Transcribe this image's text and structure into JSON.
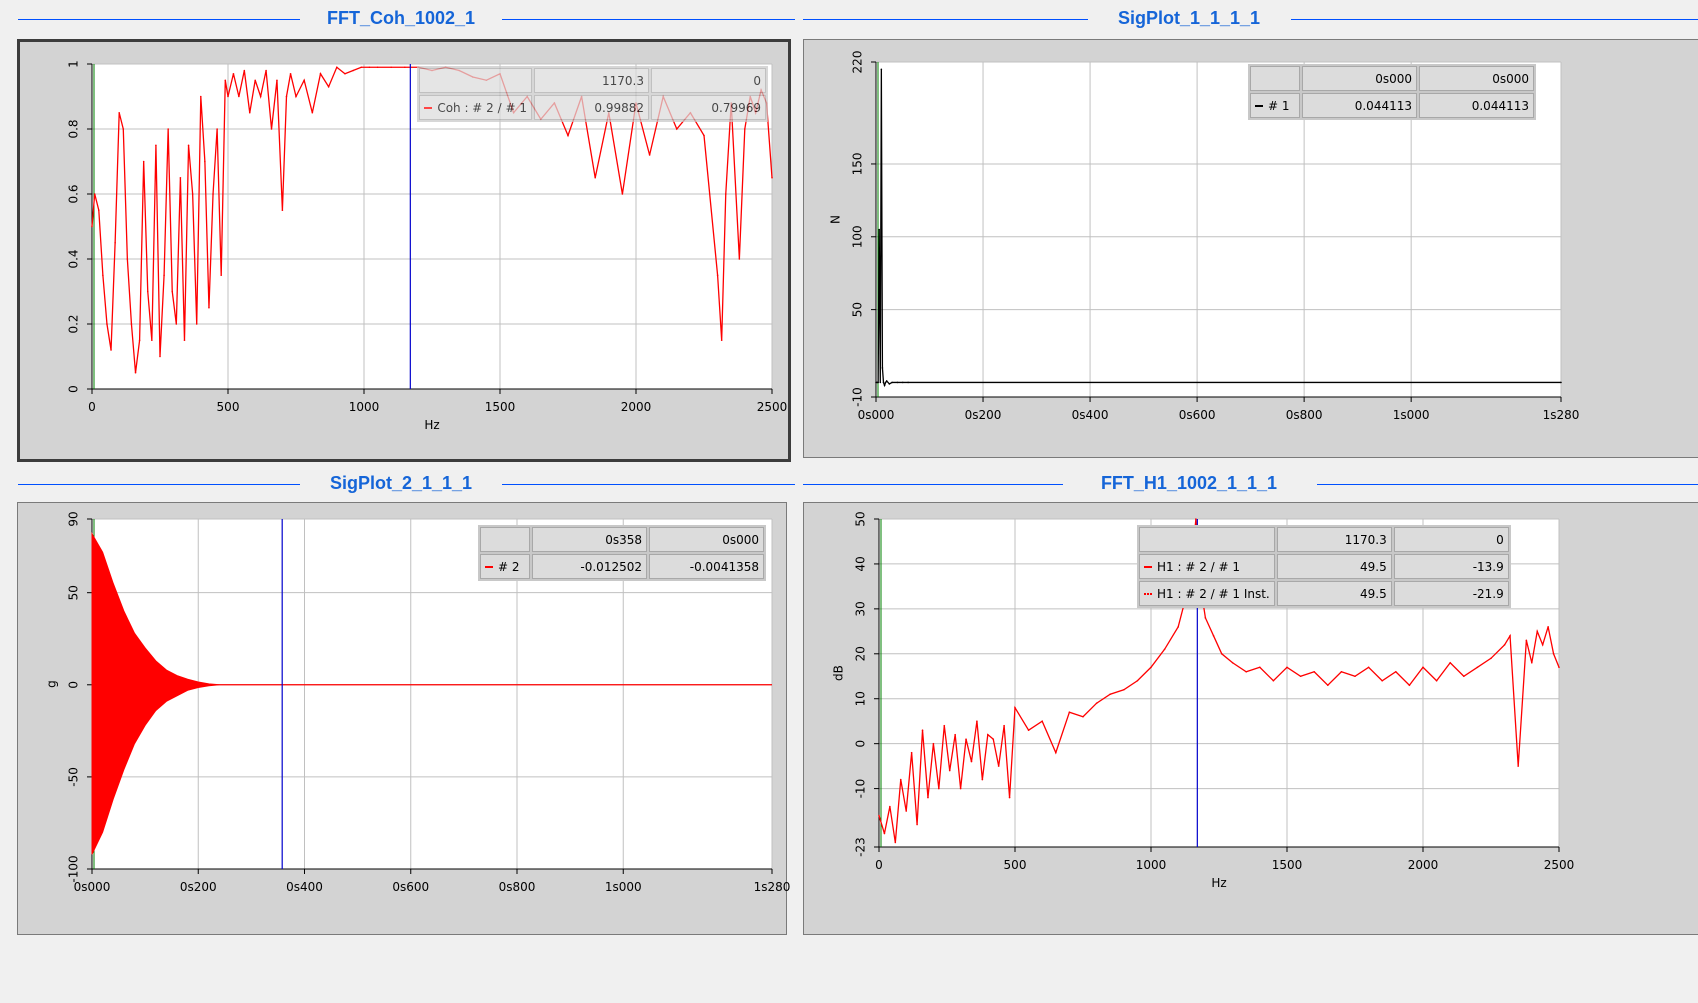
{
  "panels": [
    {
      "id": "p1",
      "title": "FFT_Coh_1002_1",
      "active": true,
      "chart_data": {
        "type": "line",
        "title": "FFT_Coh_1002_1",
        "xlabel": "Hz",
        "ylabel": "",
        "xlim": [
          0,
          2500
        ],
        "ylim": [
          0,
          1
        ],
        "xticks": [
          0,
          500,
          1000,
          1500,
          2000,
          2500
        ],
        "xtick_labels": [
          "0",
          "500",
          "1000",
          "1500",
          "2000",
          "2500"
        ],
        "yticks": [
          0,
          0.2,
          0.4,
          0.6,
          0.8,
          1
        ],
        "ytick_labels": [
          "0",
          "0.2",
          "0.4",
          "0.6",
          "0.8",
          "1"
        ],
        "grid": true,
        "cursor_x": 1170.3,
        "series": [
          {
            "color": "#ff0000",
            "x": [
              0,
              10,
              25,
              40,
              55,
              70,
              85,
              100,
              115,
              130,
              145,
              160,
              175,
              190,
              205,
              220,
              235,
              250,
              265,
              280,
              295,
              310,
              325,
              340,
              355,
              370,
              385,
              400,
              415,
              430,
              445,
              460,
              475,
              490,
              500,
              520,
              540,
              560,
              580,
              600,
              620,
              640,
              660,
              680,
              700,
              715,
              730,
              750,
              780,
              810,
              840,
              870,
              900,
              930,
              960,
              990,
              1020,
              1050,
              1100,
              1150,
              1200,
              1250,
              1300,
              1350,
              1400,
              1450,
              1500,
              1550,
              1600,
              1650,
              1700,
              1750,
              1800,
              1850,
              1900,
              1950,
              2000,
              2050,
              2100,
              2150,
              2200,
              2250,
              2300,
              2315,
              2330,
              2350,
              2380,
              2400,
              2420,
              2440,
              2460,
              2480,
              2500
            ],
            "y": [
              0.5,
              0.6,
              0.55,
              0.35,
              0.2,
              0.12,
              0.45,
              0.85,
              0.8,
              0.4,
              0.2,
              0.05,
              0.15,
              0.7,
              0.3,
              0.15,
              0.75,
              0.1,
              0.35,
              0.8,
              0.3,
              0.2,
              0.65,
              0.15,
              0.75,
              0.6,
              0.2,
              0.9,
              0.7,
              0.25,
              0.6,
              0.8,
              0.35,
              0.95,
              0.9,
              0.97,
              0.9,
              0.98,
              0.85,
              0.95,
              0.9,
              0.98,
              0.8,
              0.95,
              0.55,
              0.9,
              0.97,
              0.9,
              0.95,
              0.85,
              0.97,
              0.93,
              0.99,
              0.97,
              0.98,
              0.99,
              0.99,
              0.99,
              0.99,
              0.99,
              0.99,
              0.98,
              0.99,
              0.98,
              0.96,
              0.95,
              0.97,
              0.85,
              0.9,
              0.83,
              0.88,
              0.78,
              0.9,
              0.65,
              0.85,
              0.6,
              0.88,
              0.72,
              0.9,
              0.8,
              0.85,
              0.78,
              0.35,
              0.15,
              0.6,
              0.88,
              0.4,
              0.8,
              0.9,
              0.85,
              0.92,
              0.88,
              0.65
            ]
          }
        ]
      },
      "cursor_table": {
        "rows": [
          {
            "label": "",
            "values": [
              "1170.3",
              "0"
            ]
          },
          {
            "label": "Coh : # 2 / # 1",
            "swatch": "#ff0000",
            "values": [
              "0.99882",
              "0.79969"
            ]
          }
        ]
      }
    },
    {
      "id": "p2",
      "title": "SigPlot_1_1_1_1",
      "active": false,
      "chart_data": {
        "type": "line",
        "title": "SigPlot_1_1_1_1",
        "xlabel": "",
        "ylabel": "N",
        "xlim": [
          0,
          1.28
        ],
        "ylim": [
          -10,
          220
        ],
        "xticks": [
          0,
          0.2,
          0.4,
          0.6,
          0.8,
          1.0,
          1.28
        ],
        "xtick_labels": [
          "0s000",
          "0s200",
          "0s400",
          "0s600",
          "0s800",
          "1s000",
          "1s280"
        ],
        "yticks": [
          -10,
          50,
          100,
          150,
          220
        ],
        "ytick_labels": [
          "-10",
          "50",
          "100",
          "150",
          "220"
        ],
        "grid": true,
        "series": [
          {
            "color": "#000000",
            "x": [
              0,
              0.002,
              0.004,
              0.006,
              0.008,
              0.01,
              0.012,
              0.014,
              0.016,
              0.018,
              0.02,
              0.025,
              0.03,
              0.04,
              0.05,
              0.06,
              1.28
            ],
            "y": [
              0,
              0,
              0,
              105,
              0,
              215,
              10,
              0,
              -2,
              0,
              1,
              -1,
              0,
              0,
              0,
              0,
              0
            ]
          }
        ]
      },
      "cursor_table": {
        "rows": [
          {
            "label": "",
            "values": [
              "0s000",
              "0s000"
            ]
          },
          {
            "label": "# 1",
            "swatch": "#000000",
            "values": [
              "0.044113",
              "0.044113"
            ]
          }
        ]
      }
    },
    {
      "id": "p3",
      "title": "SigPlot_2_1_1_1",
      "active": false,
      "chart_data": {
        "type": "area",
        "title": "SigPlot_2_1_1_1",
        "xlabel": "",
        "ylabel": "g",
        "xlim": [
          0,
          1.28
        ],
        "ylim": [
          -100,
          90
        ],
        "xticks": [
          0,
          0.2,
          0.4,
          0.6,
          0.8,
          1.0,
          1.28
        ],
        "xtick_labels": [
          "0s000",
          "0s200",
          "0s400",
          "0s600",
          "0s800",
          "1s000",
          "1s280"
        ],
        "yticks": [
          -100,
          -50,
          0,
          50,
          90
        ],
        "ytick_labels": [
          "-100",
          "-50",
          "0",
          "50",
          "90"
        ],
        "grid": true,
        "cursor_x": 0.358,
        "series": [
          {
            "color": "#ff0000",
            "x": [
              0,
              0.02,
              0.04,
              0.06,
              0.08,
              0.1,
              0.12,
              0.14,
              0.16,
              0.18,
              0.2,
              0.22,
              0.24,
              1.28
            ],
            "upper": [
              82,
              72,
              55,
              40,
              28,
              20,
              13,
              8,
              5,
              3,
              1.5,
              0.5,
              0,
              0
            ],
            "lower": [
              -92,
              -80,
              -62,
              -46,
              -32,
              -22,
              -14,
              -9,
              -6,
              -3,
              -1.5,
              -0.5,
              0,
              0
            ]
          }
        ]
      },
      "cursor_table": {
        "rows": [
          {
            "label": "",
            "values": [
              "0s358",
              "0s000"
            ]
          },
          {
            "label": "# 2",
            "swatch": "#ff0000",
            "values": [
              "-0.012502",
              "-0.0041358"
            ]
          }
        ]
      }
    },
    {
      "id": "p4",
      "title": "FFT_H1_1002_1_1_1",
      "active": false,
      "chart_data": {
        "type": "line",
        "title": "FFT_H1_1002_1_1_1",
        "xlabel": "Hz",
        "ylabel": "dB",
        "xlim": [
          0,
          2500
        ],
        "ylim": [
          -23,
          50
        ],
        "xticks": [
          0,
          500,
          1000,
          1500,
          2000,
          2500
        ],
        "xtick_labels": [
          "0",
          "500",
          "1000",
          "1500",
          "2000",
          "2500"
        ],
        "yticks": [
          -23,
          -10,
          0,
          10,
          20,
          30,
          40,
          50
        ],
        "ytick_labels": [
          "-23",
          "-10",
          "0",
          "10",
          "20",
          "30",
          "40",
          "50"
        ],
        "grid": true,
        "cursor_x": 1170.3,
        "series": [
          {
            "color": "#ff0000",
            "x": [
              0,
              20,
              40,
              60,
              80,
              100,
              120,
              140,
              160,
              180,
              200,
              220,
              240,
              260,
              280,
              300,
              320,
              340,
              360,
              380,
              400,
              420,
              440,
              460,
              480,
              500,
              550,
              600,
              650,
              700,
              750,
              800,
              850,
              900,
              950,
              1000,
              1050,
              1100,
              1130,
              1150,
              1165,
              1175,
              1185,
              1200,
              1230,
              1260,
              1300,
              1350,
              1400,
              1450,
              1500,
              1550,
              1600,
              1650,
              1700,
              1750,
              1800,
              1850,
              1900,
              1950,
              2000,
              2050,
              2100,
              2150,
              2200,
              2250,
              2300,
              2320,
              2350,
              2380,
              2400,
              2420,
              2440,
              2460,
              2480,
              2500
            ],
            "y": [
              -16,
              -20,
              -14,
              -22,
              -8,
              -15,
              -2,
              -18,
              3,
              -12,
              0,
              -10,
              4,
              -6,
              2,
              -10,
              1,
              -4,
              5,
              -8,
              2,
              1,
              -5,
              4,
              -12,
              8,
              3,
              5,
              -2,
              7,
              6,
              9,
              11,
              12,
              14,
              17,
              21,
              26,
              33,
              40,
              50,
              42,
              34,
              28,
              24,
              20,
              18,
              16,
              17,
              14,
              17,
              15,
              16,
              13,
              16,
              15,
              17,
              14,
              16,
              13,
              17,
              14,
              18,
              15,
              17,
              19,
              22,
              24,
              -5,
              23,
              18,
              25,
              22,
              26,
              20,
              17
            ]
          }
        ]
      },
      "cursor_table": {
        "rows": [
          {
            "label": "",
            "values": [
              "1170.3",
              "0"
            ]
          },
          {
            "label": "H1 : # 2 / # 1",
            "swatch": "#ff0000",
            "values": [
              "49.5",
              "-13.9"
            ]
          },
          {
            "label": "H1 : # 2 / # 1 Inst.",
            "swatch": "#ff0000",
            "dotted": true,
            "values": [
              "49.5",
              "-21.9"
            ]
          }
        ]
      }
    }
  ]
}
